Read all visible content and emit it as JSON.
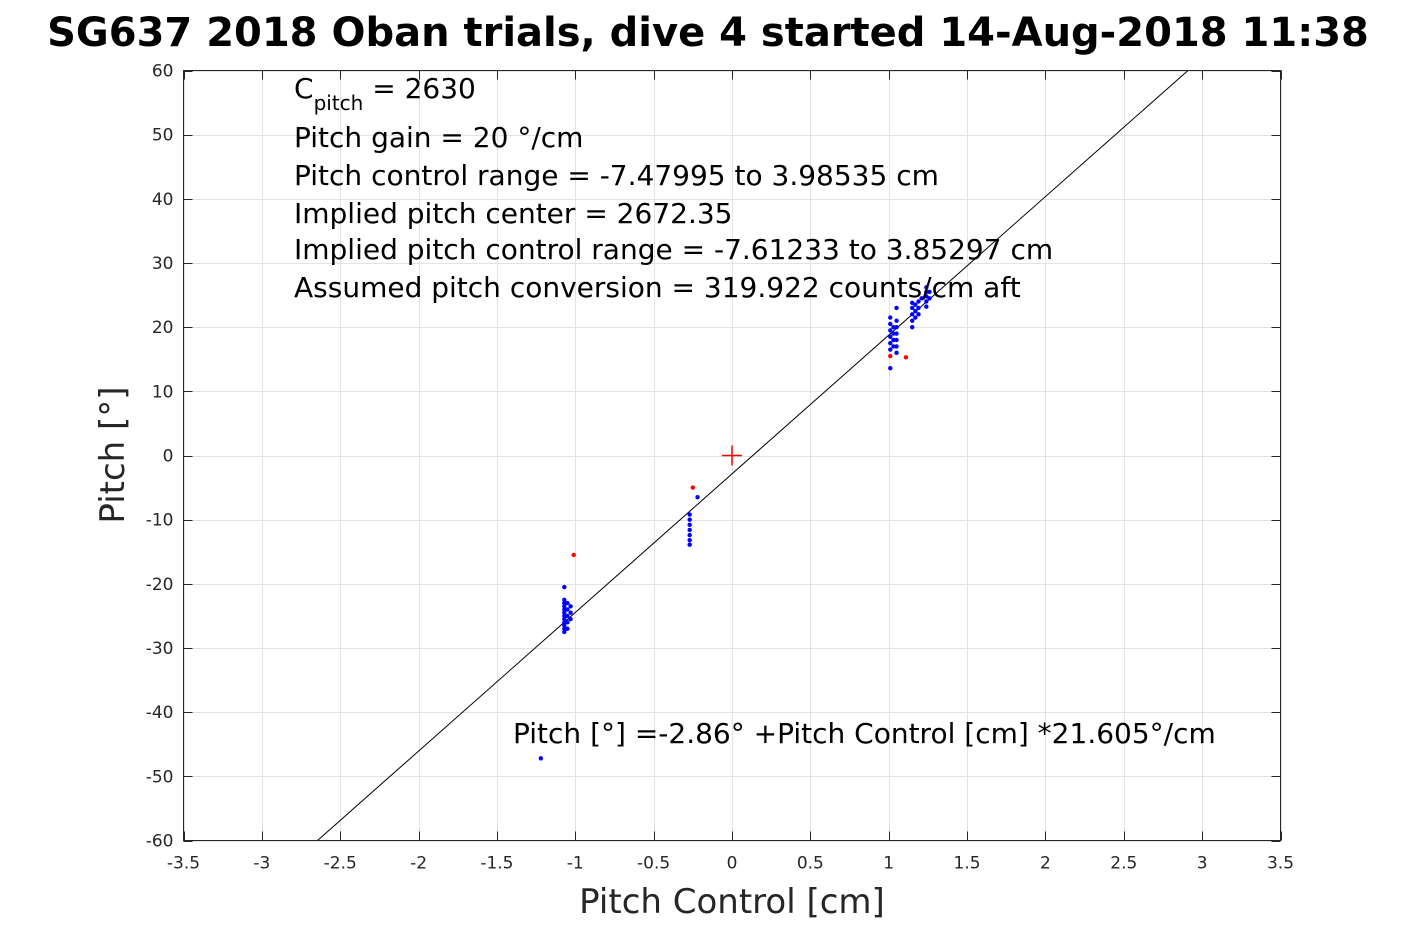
{
  "chart_data": {
    "type": "scatter",
    "title": "SG637 2018 Oban trials, dive 4 started 14-Aug-2018 11:38",
    "xlabel": "Pitch Control [cm]",
    "ylabel": "Pitch [°]",
    "xlim": [
      -3.5,
      3.5
    ],
    "ylim": [
      -60,
      60
    ],
    "xticks": [
      -3.5,
      -3,
      -2.5,
      -2,
      -1.5,
      -1,
      -0.5,
      0,
      0.5,
      1,
      1.5,
      2,
      2.5,
      3,
      3.5
    ],
    "xtick_labels": [
      "-3.5",
      "-3",
      "-2.5",
      "-2",
      "-1.5",
      "-1",
      "-0.5",
      "0",
      "0.5",
      "1",
      "1.5",
      "2",
      "2.5",
      "3",
      "3.5"
    ],
    "yticks": [
      -60,
      -50,
      -40,
      -30,
      -20,
      -10,
      0,
      10,
      20,
      30,
      40,
      50,
      60
    ],
    "ytick_labels": [
      "-60",
      "-50",
      "-40",
      "-30",
      "-20",
      "-10",
      "0",
      "10",
      "20",
      "30",
      "40",
      "50",
      "60"
    ],
    "grid": true,
    "annotations": {
      "cpitch_main": "C",
      "cpitch_sub": "pitch",
      "cpitch_value": " = 2630",
      "lines": [
        "Pitch gain = 20 °/cm",
        "Pitch control range = -7.47995 to 3.98535 cm",
        "Implied pitch center = 2672.35",
        "Implied pitch control range = -7.61233 to 3.85297 cm",
        "Assumed pitch conversion = 319.922 counts/cm aft"
      ],
      "fit_text": "Pitch [°] =-2.86° +Pitch Control [cm] *21.605°/cm"
    },
    "fit_line": {
      "intercept": -2.86,
      "slope": 21.605,
      "color": "#000000"
    },
    "center_marker": {
      "x": 0,
      "y": 0,
      "color": "#ff0000"
    },
    "series": [
      {
        "color": "#0000ff",
        "points": [
          [
            -1.22,
            -47.2
          ],
          [
            -1.07,
            -20.5
          ],
          [
            -1.07,
            -22.5
          ],
          [
            -1.07,
            -23.0
          ],
          [
            -1.07,
            -23.5
          ],
          [
            -1.07,
            -24.0
          ],
          [
            -1.07,
            -24.5
          ],
          [
            -1.07,
            -25.0
          ],
          [
            -1.07,
            -25.5
          ],
          [
            -1.07,
            -26.0
          ],
          [
            -1.07,
            -26.5
          ],
          [
            -1.07,
            -27.0
          ],
          [
            -1.07,
            -27.5
          ],
          [
            -1.05,
            -23.0
          ],
          [
            -1.05,
            -24.0
          ],
          [
            -1.05,
            -25.0
          ],
          [
            -1.05,
            -26.0
          ],
          [
            -1.05,
            -27.0
          ],
          [
            -1.03,
            -23.5
          ],
          [
            -1.03,
            -24.5
          ],
          [
            -1.03,
            -25.5
          ],
          [
            -0.27,
            -9.2
          ],
          [
            -0.27,
            -10.0
          ],
          [
            -0.27,
            -10.8
          ],
          [
            -0.27,
            -11.6
          ],
          [
            -0.27,
            -12.4
          ],
          [
            -0.27,
            -13.2
          ],
          [
            -0.27,
            -13.9
          ],
          [
            -0.22,
            -6.5
          ],
          [
            1.01,
            13.6
          ],
          [
            1.01,
            16.5
          ],
          [
            1.01,
            17.5
          ],
          [
            1.01,
            18.5
          ],
          [
            1.01,
            19.5
          ],
          [
            1.01,
            20.5
          ],
          [
            1.01,
            21.5
          ],
          [
            1.03,
            17.0
          ],
          [
            1.03,
            18.0
          ],
          [
            1.03,
            19.0
          ],
          [
            1.03,
            20.0
          ],
          [
            1.05,
            16.0
          ],
          [
            1.05,
            17.0
          ],
          [
            1.05,
            18.0
          ],
          [
            1.05,
            19.0
          ],
          [
            1.05,
            20.0
          ],
          [
            1.05,
            21.0
          ],
          [
            1.05,
            23.0
          ],
          [
            1.15,
            20.0
          ],
          [
            1.15,
            21.0
          ],
          [
            1.15,
            22.0
          ],
          [
            1.15,
            23.0
          ],
          [
            1.15,
            23.8
          ],
          [
            1.17,
            21.5
          ],
          [
            1.17,
            22.5
          ],
          [
            1.17,
            23.5
          ],
          [
            1.19,
            22.0
          ],
          [
            1.19,
            23.0
          ],
          [
            1.19,
            24.0
          ],
          [
            1.21,
            24.5
          ],
          [
            1.24,
            23.2
          ],
          [
            1.24,
            24.0
          ],
          [
            1.24,
            24.8
          ],
          [
            1.24,
            25.5
          ],
          [
            1.24,
            26.2
          ],
          [
            1.26,
            24.5
          ],
          [
            1.26,
            25.5
          ]
        ]
      },
      {
        "color": "#ff0000",
        "points": [
          [
            -1.01,
            -15.5
          ],
          [
            -0.25,
            -5.0
          ],
          [
            1.01,
            15.5
          ],
          [
            1.11,
            15.3
          ]
        ]
      }
    ]
  }
}
